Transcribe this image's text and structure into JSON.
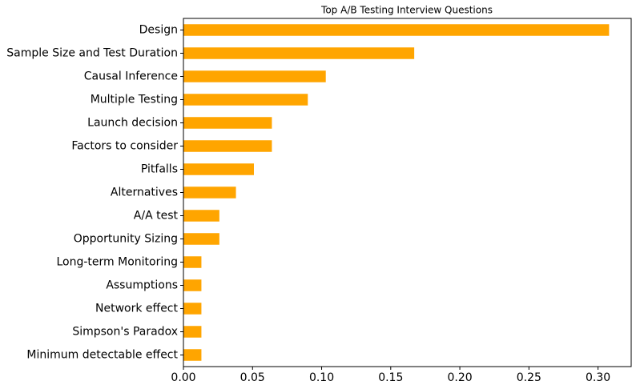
{
  "chart_data": {
    "type": "barh",
    "title": "Top A/B Testing Interview Questions",
    "categories": [
      "Design",
      "Sample Size and Test Duration",
      "Causal Inference",
      "Multiple Testing",
      "Launch decision",
      "Factors to consider",
      "Pitfalls",
      "Alternatives",
      "A/A test",
      "Opportunity Sizing",
      "Long-term Monitoring",
      "Assumptions",
      "Network effect",
      "Simpson's Paradox",
      "Minimum detectable effect"
    ],
    "values": [
      0.308,
      0.167,
      0.103,
      0.09,
      0.064,
      0.064,
      0.051,
      0.038,
      0.026,
      0.026,
      0.013,
      0.013,
      0.013,
      0.013,
      0.013
    ],
    "color": "#ffa500",
    "xlim": [
      0,
      0.324
    ],
    "xticks": [
      {
        "value": 0,
        "label": "0.00"
      },
      0.05,
      {
        "value": 0.1,
        "label": "0.10"
      },
      0.15,
      {
        "value": 0.2,
        "label": "0.20"
      },
      0.25,
      {
        "value": 0.3,
        "label": "0.30"
      }
    ],
    "grid": false
  }
}
